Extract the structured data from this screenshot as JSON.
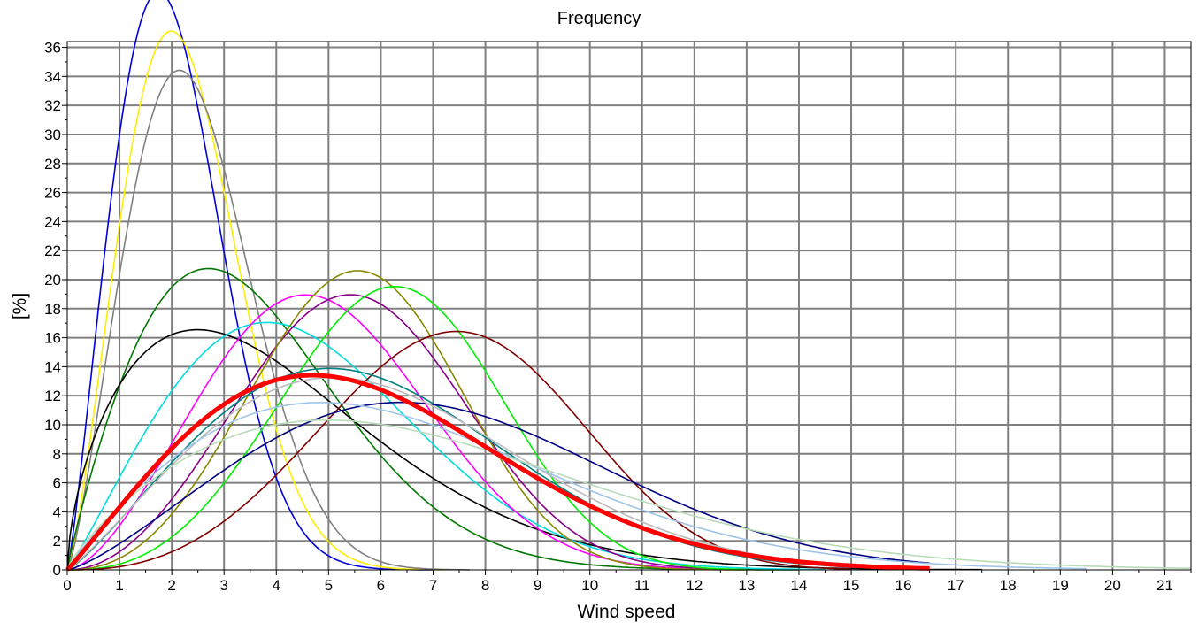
{
  "chart_data": {
    "type": "line",
    "title": "Frequency",
    "xlabel": "Wind speed",
    "ylabel": "[%]",
    "xlim": [
      0,
      21.5
    ],
    "ylim": [
      0,
      36.4
    ],
    "x_ticks": [
      0,
      1,
      2,
      3,
      4,
      5,
      6,
      7,
      8,
      9,
      10,
      11,
      12,
      13,
      14,
      15,
      16,
      17,
      18,
      19,
      20,
      21
    ],
    "y_ticks": [
      0,
      2,
      4,
      6,
      8,
      10,
      12,
      14,
      16,
      18,
      20,
      22,
      24,
      26,
      28,
      30,
      32,
      34,
      36
    ],
    "grid": true,
    "legend": "none",
    "series": [
      {
        "color": "#0000dd",
        "k": 2.2,
        "c": 2.3,
        "xmax": 7.0,
        "width": 1.6
      },
      {
        "color": "#ffee00",
        "k": 2.3,
        "c": 2.55,
        "xmax": 7.2,
        "width": 1.6
      },
      {
        "color": "#808080",
        "k": 2.3,
        "c": 2.75,
        "xmax": 7.7,
        "width": 1.6
      },
      {
        "color": "#007700",
        "k": 1.9,
        "c": 4.0,
        "xmax": 14.0,
        "width": 1.6
      },
      {
        "color": "#000000",
        "k": 1.6,
        "c": 4.6,
        "xmax": 17.5,
        "width": 1.6
      },
      {
        "color": "#00dddd",
        "k": 2.1,
        "c": 5.2,
        "xmax": 14.5,
        "width": 1.6
      },
      {
        "color": "#ff00ff",
        "k": 2.6,
        "c": 5.5,
        "xmax": 13.0,
        "width": 1.6
      },
      {
        "color": "#880088",
        "k": 3.0,
        "c": 6.2,
        "xmax": 13.0,
        "width": 1.6
      },
      {
        "color": "#888800",
        "k": 3.3,
        "c": 6.2,
        "xmax": 13.0,
        "width": 1.6
      },
      {
        "color": "#00ee00",
        "k": 3.5,
        "c": 6.9,
        "xmax": 13.0,
        "width": 1.6
      },
      {
        "color": "#800000",
        "k": 3.5,
        "c": 8.2,
        "xmax": 15.0,
        "width": 1.6
      },
      {
        "color": "#008080",
        "k": 2.2,
        "c": 6.6,
        "xmax": 15.0,
        "width": 1.6
      },
      {
        "color": "#000080",
        "k": 2.3,
        "c": 8.2,
        "xmax": 16.5,
        "width": 1.6
      },
      {
        "color": "#bbbbbb",
        "k": 2.15,
        "c": 6.8,
        "xmax": 15.0,
        "width": 1.6
      },
      {
        "color": "#a0c4e8",
        "k": 1.9,
        "c": 7.2,
        "xmax": 19.5,
        "width": 1.6
      },
      {
        "color": "#b8dcb8",
        "k": 1.8,
        "c": 7.8,
        "xmax": 21.5,
        "width": 1.6
      },
      {
        "color": "#ff0000",
        "k": 2.05,
        "c": 6.5,
        "xmax": 16.5,
        "width": 5
      }
    ]
  }
}
